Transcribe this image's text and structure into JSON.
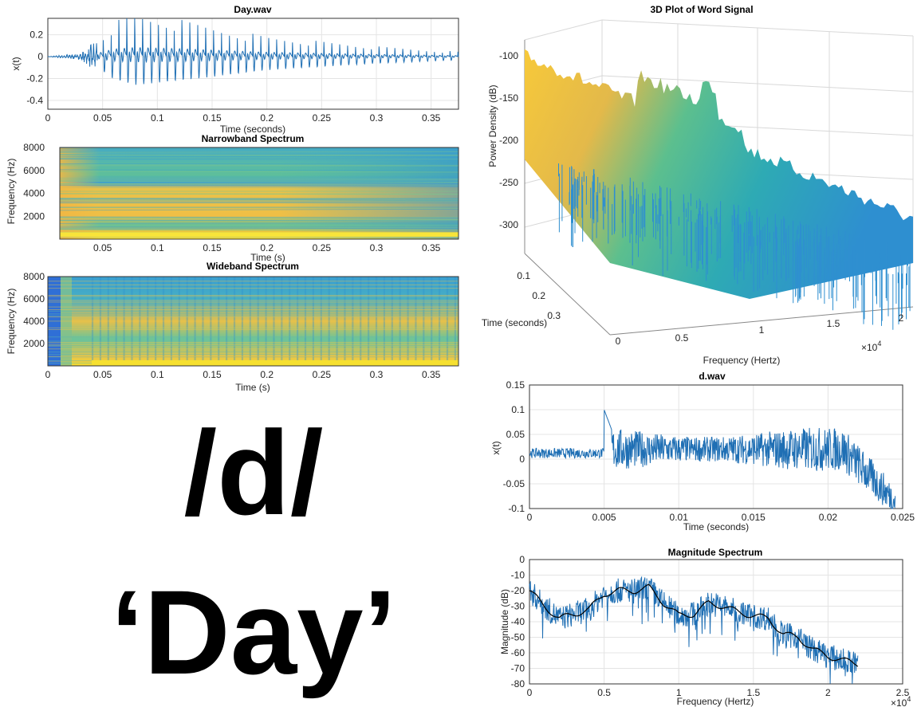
{
  "big_text": {
    "phoneme": "/d/",
    "word": "‘Day’"
  },
  "colors": {
    "line": "#1f6fb4",
    "smooth": "#000000",
    "yellow": "#f5d324",
    "teal": "#3fb6a2",
    "blue": "#2f6fd6"
  },
  "chart_data": [
    {
      "id": "day_wave",
      "type": "line",
      "title": "Day.wav",
      "xlabel": "Time (seconds)",
      "ylabel": "x(t)",
      "xlim": [
        0,
        0.375
      ],
      "ylim": [
        -0.48,
        0.35
      ],
      "xticks": [
        "0",
        "0.05",
        "0.1",
        "0.15",
        "0.2",
        "0.25",
        "0.3",
        "0.35"
      ],
      "yticks": [
        "0.2",
        "0",
        "-0.2",
        "-0.4"
      ],
      "grid": true,
      "envelope": {
        "t": [
          0,
          0.02,
          0.03,
          0.045,
          0.06,
          0.08,
          0.12,
          0.2,
          0.3,
          0.375
        ],
        "amp": [
          0,
          0.02,
          0.03,
          0.15,
          0.34,
          0.42,
          0.36,
          0.2,
          0.1,
          0.05
        ]
      },
      "pitch_period": 0.0072
    },
    {
      "id": "narrowband",
      "type": "heatmap",
      "title": "Narrowband Spectrum",
      "xlabel": "Time (s)",
      "ylabel": "Frequency (Hz)",
      "xlim": [
        0,
        0.375
      ],
      "ylim": [
        0,
        8000
      ],
      "xticks": [
        "0.05",
        "0.1",
        "0.15",
        "0.2",
        "0.25",
        "0.3",
        "0.35"
      ],
      "yticks": [
        "8000",
        "6000",
        "4000",
        "2000"
      ]
    },
    {
      "id": "wideband",
      "type": "heatmap",
      "title": "Wideband Spectrum",
      "xlabel": "Time (s)",
      "ylabel": "Frequency (Hz)",
      "xlim": [
        0,
        0.375
      ],
      "ylim": [
        0,
        8000
      ],
      "xticks": [
        "0",
        "0.05",
        "0.1",
        "0.15",
        "0.2",
        "0.25",
        "0.3",
        "0.35"
      ],
      "yticks": [
        "8000",
        "6000",
        "4000",
        "2000"
      ]
    },
    {
      "id": "surface3d",
      "type": "area",
      "title": "3D Plot of Word Signal",
      "xlabel": "Frequency (Hertz)",
      "ylabel": "Time (seconds)",
      "zlabel": "Power Density (dB)",
      "zticks": [
        "-100",
        "-150",
        "-200",
        "-250",
        "-300"
      ],
      "freq_ticks": [
        "0.5",
        "1",
        "1.5",
        "2"
      ],
      "freq_exponent": "×10",
      "freq_exponent_power": "4",
      "time_ticks": [
        "0.1",
        "0.2",
        "0.3"
      ],
      "origin_tick": "0"
    },
    {
      "id": "d_wave",
      "type": "line",
      "title": "d.wav",
      "xlabel": "Time (seconds)",
      "ylabel": "x(t)",
      "xlim": [
        0,
        0.025
      ],
      "ylim": [
        -0.1,
        0.15
      ],
      "xticks": [
        "0",
        "0.005",
        "0.01",
        "0.015",
        "0.02",
        "0.025"
      ],
      "yticks": [
        "0.15",
        "0.1",
        "0.05",
        "0",
        "-0.05",
        "-0.1"
      ],
      "grid": true
    },
    {
      "id": "magnitude",
      "type": "line",
      "title": "Magnitude Spectrum",
      "xlabel": "Frequency (Hertz)",
      "ylabel": "Magnitude (dB)",
      "xlim": [
        0,
        25000
      ],
      "ylim": [
        -80,
        0
      ],
      "xticks": [
        "0",
        "0.5",
        "1",
        "1.5",
        "2",
        "2.5"
      ],
      "x_exponent": "×10",
      "x_exponent_power": "4",
      "yticks": [
        "0",
        "-10",
        "-20",
        "-30",
        "-40",
        "-50",
        "-60",
        "-70",
        "-80"
      ],
      "grid": true,
      "smooth_envelope": {
        "f": [
          0,
          1000,
          2000,
          3000,
          4000,
          5000,
          6000,
          7000,
          8000,
          9000,
          10000,
          11000,
          12000,
          13000,
          14000,
          15000,
          16000,
          17000,
          18000,
          19000,
          20000,
          21000,
          22000
        ],
        "db": [
          -20,
          -30,
          -38,
          -35,
          -32,
          -22,
          -20,
          -20,
          -18,
          -28,
          -36,
          -35,
          -28,
          -30,
          -34,
          -36,
          -38,
          -48,
          -50,
          -58,
          -62,
          -65,
          -67
        ]
      },
      "raw_end_freq": 22000
    }
  ]
}
